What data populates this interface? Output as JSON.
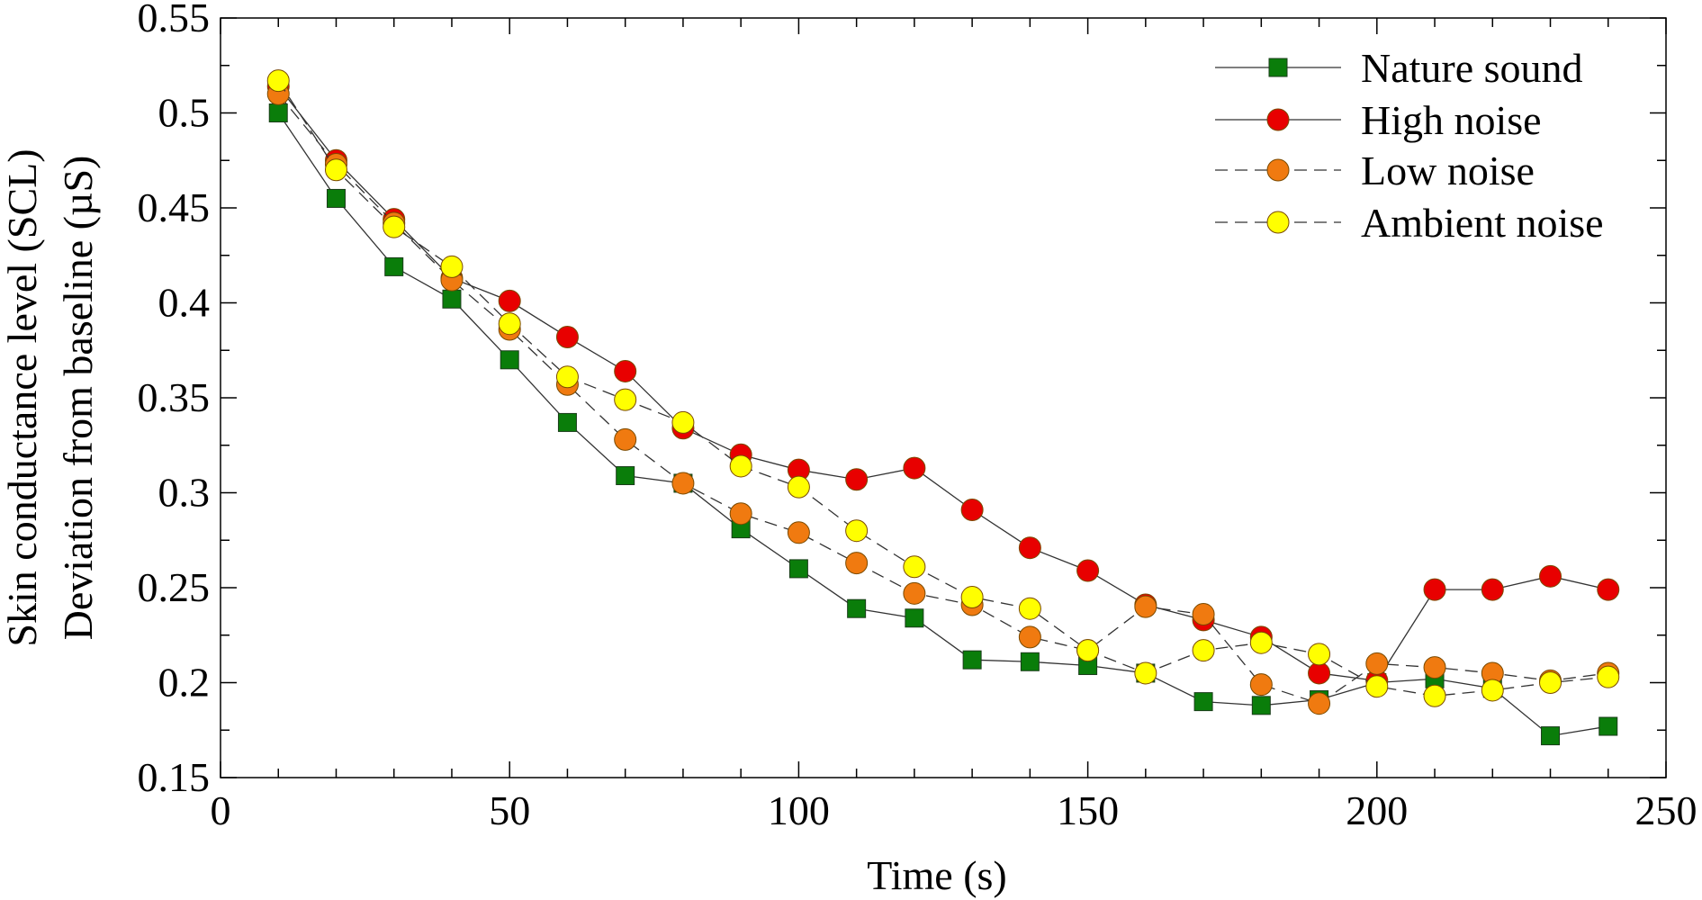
{
  "chart_data": {
    "type": "line",
    "title": "",
    "xlabel": "Time (s)",
    "ylabel_line1": "Skin conductance level (SCL)",
    "ylabel_line2": "Deviation from baseline (µS)",
    "xlim": [
      0,
      250
    ],
    "ylim": [
      0.15,
      0.55
    ],
    "x_ticks": [
      0,
      50,
      100,
      150,
      200,
      250
    ],
    "x_tick_labels": [
      "0",
      "50",
      "100",
      "150",
      "200",
      "250"
    ],
    "y_ticks": [
      0.15,
      0.2,
      0.25,
      0.3,
      0.35,
      0.4,
      0.45,
      0.5,
      0.55
    ],
    "y_tick_labels": [
      "0.15",
      "0.2",
      "0.25",
      "0.3",
      "0.35",
      "0.4",
      "0.45",
      "0.5",
      "0.55"
    ],
    "grid": false,
    "legend_position": "top-right",
    "x": [
      10,
      20,
      30,
      40,
      50,
      60,
      70,
      80,
      90,
      100,
      110,
      120,
      130,
      140,
      150,
      160,
      170,
      180,
      190,
      200,
      210,
      220,
      230,
      240
    ],
    "series": [
      {
        "name": "Nature sound",
        "marker": "square",
        "line": "solid",
        "color": "#0a7d0a",
        "values": [
          0.5,
          0.455,
          0.419,
          0.402,
          0.37,
          0.337,
          0.309,
          0.305,
          0.281,
          0.26,
          0.239,
          0.234,
          0.212,
          0.211,
          0.209,
          0.205,
          0.19,
          0.188,
          0.191,
          0.2,
          0.202,
          0.197,
          0.172,
          0.177
        ]
      },
      {
        "name": "High noise",
        "marker": "circle",
        "line": "solid",
        "color": "#e80000",
        "values": [
          0.514,
          0.475,
          0.444,
          0.413,
          0.401,
          0.382,
          0.364,
          0.334,
          0.32,
          0.312,
          0.307,
          0.313,
          0.291,
          0.271,
          0.259,
          0.241,
          0.233,
          0.224,
          0.205,
          0.201,
          0.249,
          0.249,
          0.256,
          0.249
        ]
      },
      {
        "name": "Low noise",
        "marker": "circle",
        "line": "dashed",
        "color": "#f07a10",
        "values": [
          0.51,
          0.473,
          0.442,
          0.412,
          0.386,
          0.357,
          0.328,
          0.305,
          0.289,
          0.279,
          0.263,
          0.247,
          0.241,
          0.224,
          0.217,
          0.24,
          0.236,
          0.199,
          0.189,
          0.21,
          0.208,
          0.205,
          0.201,
          0.205
        ]
      },
      {
        "name": "Ambient noise",
        "marker": "circle",
        "line": "dashed",
        "color": "#ffff00",
        "values": [
          0.517,
          0.47,
          0.44,
          0.419,
          0.389,
          0.361,
          0.349,
          0.337,
          0.314,
          0.303,
          0.28,
          0.261,
          0.245,
          0.239,
          0.217,
          0.205,
          0.217,
          0.221,
          0.215,
          0.198,
          0.193,
          0.196,
          0.2,
          0.203
        ]
      }
    ]
  }
}
